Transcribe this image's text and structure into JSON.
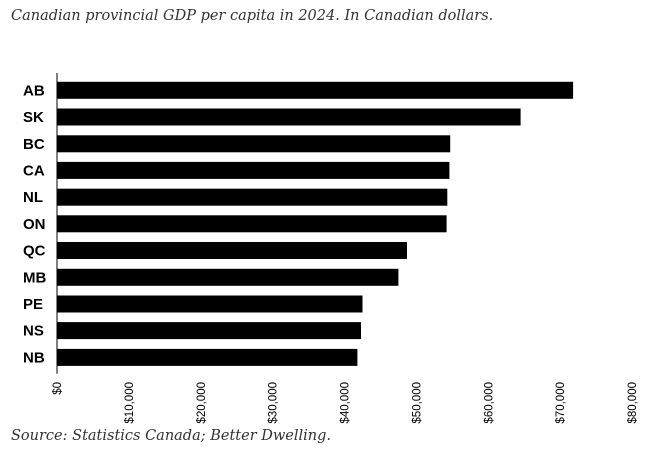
{
  "chart_data": {
    "type": "bar",
    "orientation": "horizontal",
    "title": "Canadian provincial GDP per capita in 2024. In Canadian dollars.",
    "source": "Source: Statistics Canada; Better Dwelling.",
    "categories": [
      "AB",
      "SK",
      "BC",
      "CA",
      "NL",
      "ON",
      "QC",
      "MB",
      "PE",
      "NS",
      "NB"
    ],
    "values": [
      71800,
      64500,
      54700,
      54600,
      54300,
      54200,
      48700,
      47500,
      42500,
      42300,
      41800
    ],
    "xlabel": "",
    "ylabel": "",
    "xlim": [
      0,
      80000
    ],
    "ticks": [
      0,
      10000,
      20000,
      30000,
      40000,
      50000,
      60000,
      70000,
      80000
    ],
    "tick_labels": [
      "$0",
      "$10,000",
      "$20,000",
      "$30,000",
      "$40,000",
      "$50,000",
      "$60,000",
      "$70,000",
      "$80,000"
    ],
    "bar_color": "#000000",
    "grid": false,
    "legend": "none"
  }
}
